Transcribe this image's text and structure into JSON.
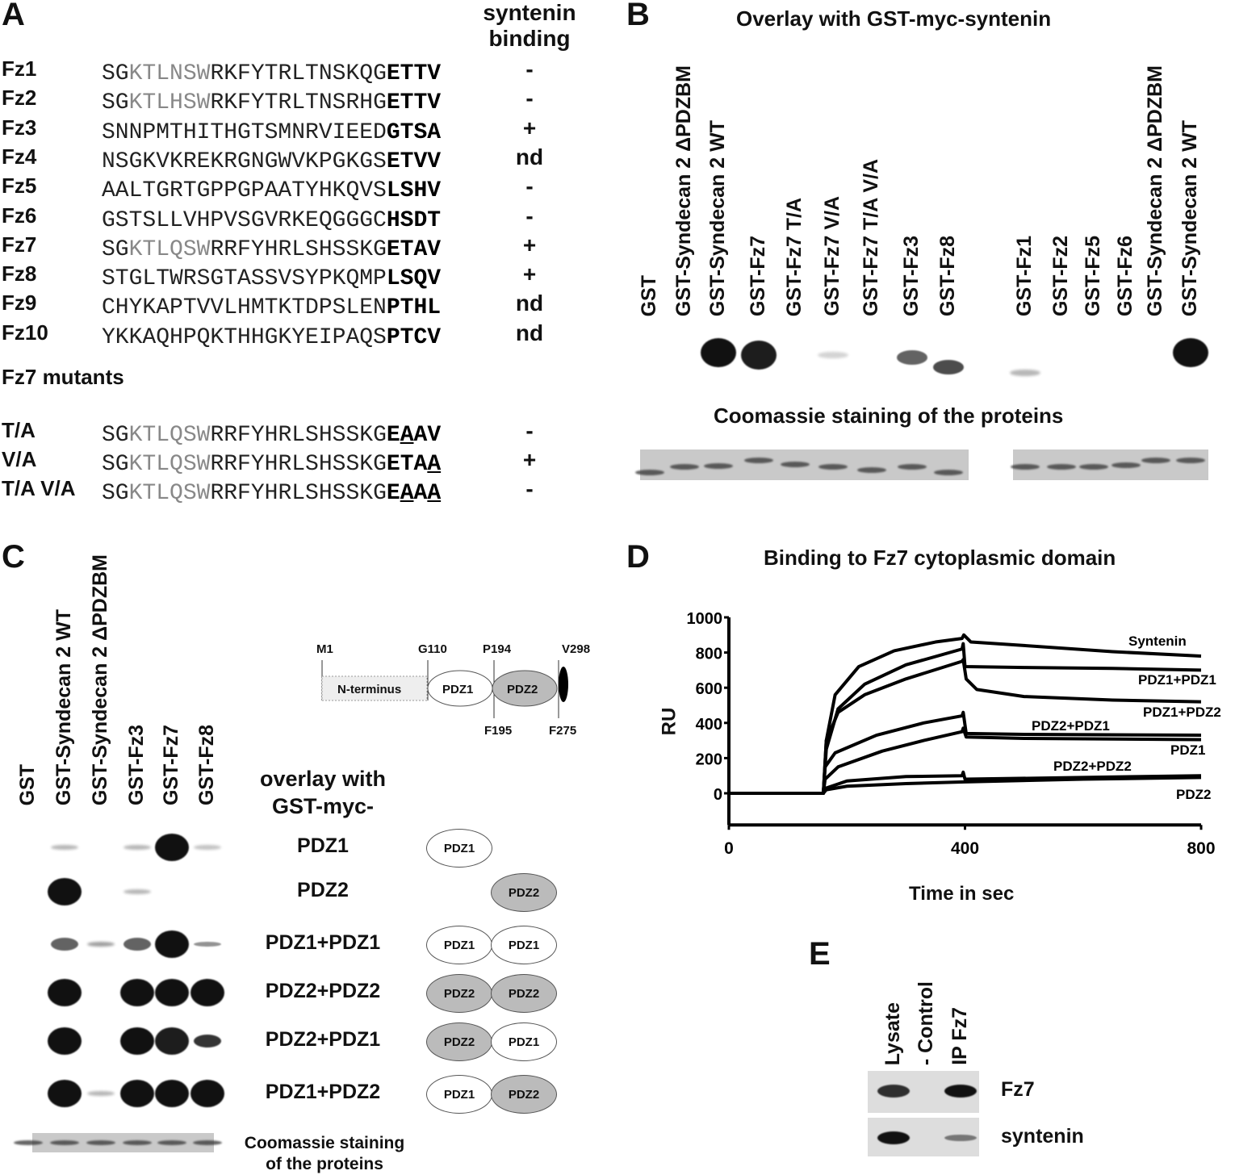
{
  "panelA": {
    "label": "A",
    "header": [
      "syntenin",
      "binding"
    ],
    "rows": [
      {
        "name": "Fz1",
        "pre": "SG",
        "grey": "KTLNSW",
        "mid": "RKFYTRLTNSKQG",
        "bold": "ETTV",
        "binding": "-"
      },
      {
        "name": "Fz2",
        "pre": "SG",
        "grey": "KTLHSW",
        "mid": "RKFYTRLTNSRHG",
        "bold": "ETTV",
        "binding": "-"
      },
      {
        "name": "Fz3",
        "pre": "",
        "grey": "",
        "mid": "SNNPMTHITHGTSMNRVIEED",
        "bold": "GTSA",
        "binding": "+"
      },
      {
        "name": "Fz4",
        "pre": "",
        "grey": "",
        "mid": "NSGKVKREKRGNGWVKPGKGS",
        "bold": "ETVV",
        "binding": "nd"
      },
      {
        "name": "Fz5",
        "pre": "",
        "grey": "",
        "mid": "AALTGRTGPPGPAATYHKQVS",
        "bold": "LSHV",
        "binding": "-"
      },
      {
        "name": "Fz6",
        "pre": "",
        "grey": "",
        "mid": "GSTSLLVHPVSGVRKEQGGGC",
        "bold": "HSDT",
        "binding": "-"
      },
      {
        "name": "Fz7",
        "pre": "SG",
        "grey": "KTLQSW",
        "mid": "RRFYHRLSHSSKG",
        "bold": "ETAV",
        "binding": "+"
      },
      {
        "name": "Fz8",
        "pre": "",
        "grey": "",
        "mid": "STGLTWRSGTASSVSYPKQMP",
        "bold": "LSQV",
        "binding": "+"
      },
      {
        "name": "Fz9",
        "pre": "",
        "grey": "",
        "mid": "CHYKAPTVVLHMTKTDPSLEN",
        "bold": "PTHL",
        "binding": "nd"
      },
      {
        "name": "Fz10",
        "pre": "",
        "grey": "",
        "mid": "YKKAQHPQKTHHGKYEIPAQS",
        "bold": "PTCV",
        "binding": "nd"
      }
    ],
    "mutants_title": "Fz7 mutants",
    "mutants": [
      {
        "name": "T/A",
        "pre": "SG",
        "grey": "KTLQSW",
        "mid": "RRFYHRLSHSSKG",
        "bold": "EAAV",
        "underline": [
          1
        ],
        "binding": "-"
      },
      {
        "name": "V/A",
        "pre": "SG",
        "grey": "KTLQSW",
        "mid": "RRFYHRLSHSSKG",
        "bold": "ETAA",
        "underline": [
          3
        ],
        "binding": "+"
      },
      {
        "name": "T/A V/A",
        "pre": "SG",
        "grey": "KTLQSW",
        "mid": "RRFYHRLSHSSKG",
        "bold": "EAAA",
        "underline": [
          1,
          3
        ],
        "binding": "-"
      }
    ]
  },
  "panelB": {
    "label": "B",
    "title": "Overlay with GST-myc-syntenin",
    "coomassie": "Coomassie staining of the proteins",
    "lanes": [
      "GST",
      "GST-Syndecan 2 ΔPDZBM",
      "GST-Syndecan 2 WT",
      "GST-Fz7",
      "GST-Fz7 T/A",
      "GST-Fz7 V/A",
      "GST-Fz7 T/A V/A",
      "GST-Fz3",
      "GST-Fz8",
      "GST-Fz1",
      "GST-Fz2",
      "GST-Fz5",
      "GST-Fz6",
      "GST-Syndecan 2 ΔPDZBM",
      "GST-Syndecan 2 WT"
    ],
    "signal": [
      0,
      0,
      1,
      0.8,
      0,
      0.03,
      0,
      0.5,
      0.6,
      0.15,
      0,
      0,
      0,
      0,
      0.9
    ]
  },
  "panelC": {
    "label": "C",
    "lanes": [
      "GST",
      "GST-Syndecan 2 WT",
      "GST-Syndecan 2 ΔPDZBM",
      "GST-Fz3",
      "GST-Fz7",
      "GST-Fz8"
    ],
    "overlay_title": [
      "overlay with",
      "GST-myc-"
    ],
    "domain_map": {
      "markers_top": [
        "M1",
        "G110",
        "P194",
        "V298"
      ],
      "markers_bottom": [
        "F195",
        "F275"
      ],
      "nterm": "N-terminus",
      "pdz1": "PDZ1",
      "pdz2": "PDZ2"
    },
    "rows": [
      {
        "label": "PDZ1",
        "domains": [
          "PDZ1"
        ],
        "signal": [
          0,
          0.15,
          0,
          0.15,
          1,
          0.1
        ]
      },
      {
        "label": "PDZ2",
        "domains": [
          "",
          "PDZ2"
        ],
        "signal": [
          0,
          1,
          0,
          0.15,
          0,
          0
        ]
      },
      {
        "label": "PDZ1+PDZ1",
        "domains": [
          "PDZ1",
          "PDZ1"
        ],
        "signal": [
          0,
          0.5,
          0.25,
          0.5,
          1,
          0.3
        ]
      },
      {
        "label": "PDZ2+PDZ2",
        "domains": [
          "PDZ2",
          "PDZ2"
        ],
        "signal": [
          0,
          0.9,
          0,
          0.9,
          0.85,
          0.85
        ]
      },
      {
        "label": "PDZ2+PDZ1",
        "domains": [
          "PDZ2",
          "PDZ1"
        ],
        "signal": [
          0,
          0.9,
          0,
          0.85,
          0.8,
          0.7
        ]
      },
      {
        "label": "PDZ1+PDZ2",
        "domains": [
          "PDZ1",
          "PDZ2"
        ],
        "signal": [
          0,
          0.85,
          0.15,
          0.9,
          0.85,
          0.85
        ]
      }
    ],
    "coomassie": [
      "Coomassie staining",
      "of the proteins"
    ]
  },
  "chart_data": {
    "type": "line",
    "title": "Binding to Fz7 cytoplasmic domain",
    "xlabel": "Time in sec",
    "ylabel": "RU",
    "xlim": [
      0,
      800
    ],
    "ylim": [
      -180,
      1000
    ],
    "xticks": [
      0,
      400,
      800
    ],
    "yticks": [
      0,
      200,
      400,
      600,
      800,
      1000
    ],
    "grid": false,
    "series": [
      {
        "name": "Syntenin",
        "points": [
          [
            0,
            0
          ],
          [
            160,
            0
          ],
          [
            165,
            300
          ],
          [
            180,
            560
          ],
          [
            220,
            720
          ],
          [
            280,
            810
          ],
          [
            350,
            860
          ],
          [
            395,
            880
          ],
          [
            398,
            900
          ],
          [
            410,
            860
          ],
          [
            500,
            840
          ],
          [
            650,
            805
          ],
          [
            800,
            780
          ]
        ]
      },
      {
        "name": "PDZ1+PDZ1",
        "points": [
          [
            0,
            0
          ],
          [
            160,
            0
          ],
          [
            165,
            250
          ],
          [
            185,
            480
          ],
          [
            230,
            620
          ],
          [
            300,
            730
          ],
          [
            395,
            820
          ],
          [
            397,
            850
          ],
          [
            400,
            720
          ],
          [
            500,
            715
          ],
          [
            650,
            710
          ],
          [
            800,
            700
          ]
        ]
      },
      {
        "name": "PDZ1+PDZ2",
        "points": [
          [
            0,
            0
          ],
          [
            160,
            0
          ],
          [
            165,
            300
          ],
          [
            185,
            460
          ],
          [
            230,
            560
          ],
          [
            300,
            650
          ],
          [
            395,
            750
          ],
          [
            397,
            760
          ],
          [
            402,
            650
          ],
          [
            420,
            590
          ],
          [
            500,
            550
          ],
          [
            650,
            530
          ],
          [
            800,
            520
          ]
        ]
      },
      {
        "name": "PDZ2+PDZ1",
        "points": [
          [
            0,
            0
          ],
          [
            160,
            0
          ],
          [
            163,
            150
          ],
          [
            180,
            230
          ],
          [
            250,
            330
          ],
          [
            330,
            400
          ],
          [
            395,
            440
          ],
          [
            397,
            460
          ],
          [
            402,
            340
          ],
          [
            500,
            335
          ],
          [
            800,
            330
          ]
        ]
      },
      {
        "name": "PDZ1",
        "points": [
          [
            0,
            0
          ],
          [
            160,
            0
          ],
          [
            163,
            80
          ],
          [
            185,
            150
          ],
          [
            260,
            240
          ],
          [
            330,
            300
          ],
          [
            395,
            350
          ],
          [
            397,
            370
          ],
          [
            402,
            320
          ],
          [
            500,
            312
          ],
          [
            800,
            305
          ]
        ]
      },
      {
        "name": "PDZ2+PDZ2",
        "points": [
          [
            0,
            0
          ],
          [
            160,
            0
          ],
          [
            165,
            30
          ],
          [
            200,
            70
          ],
          [
            300,
            95
          ],
          [
            395,
            100
          ],
          [
            397,
            120
          ],
          [
            400,
            80
          ],
          [
            600,
            90
          ],
          [
            800,
            100
          ]
        ]
      },
      {
        "name": "PDZ2",
        "points": [
          [
            0,
            0
          ],
          [
            160,
            0
          ],
          [
            165,
            20
          ],
          [
            200,
            40
          ],
          [
            300,
            55
          ],
          [
            400,
            65
          ],
          [
            600,
            80
          ],
          [
            800,
            90
          ]
        ]
      }
    ],
    "label": "D"
  },
  "panelE": {
    "label": "E",
    "lanes": [
      "Lysate",
      "- Control",
      "IP Fz7"
    ],
    "rows": [
      {
        "label": "Fz7",
        "signal": [
          0.7,
          0,
          0.9
        ]
      },
      {
        "label": "syntenin",
        "signal": [
          1,
          0,
          0.35
        ]
      }
    ]
  }
}
